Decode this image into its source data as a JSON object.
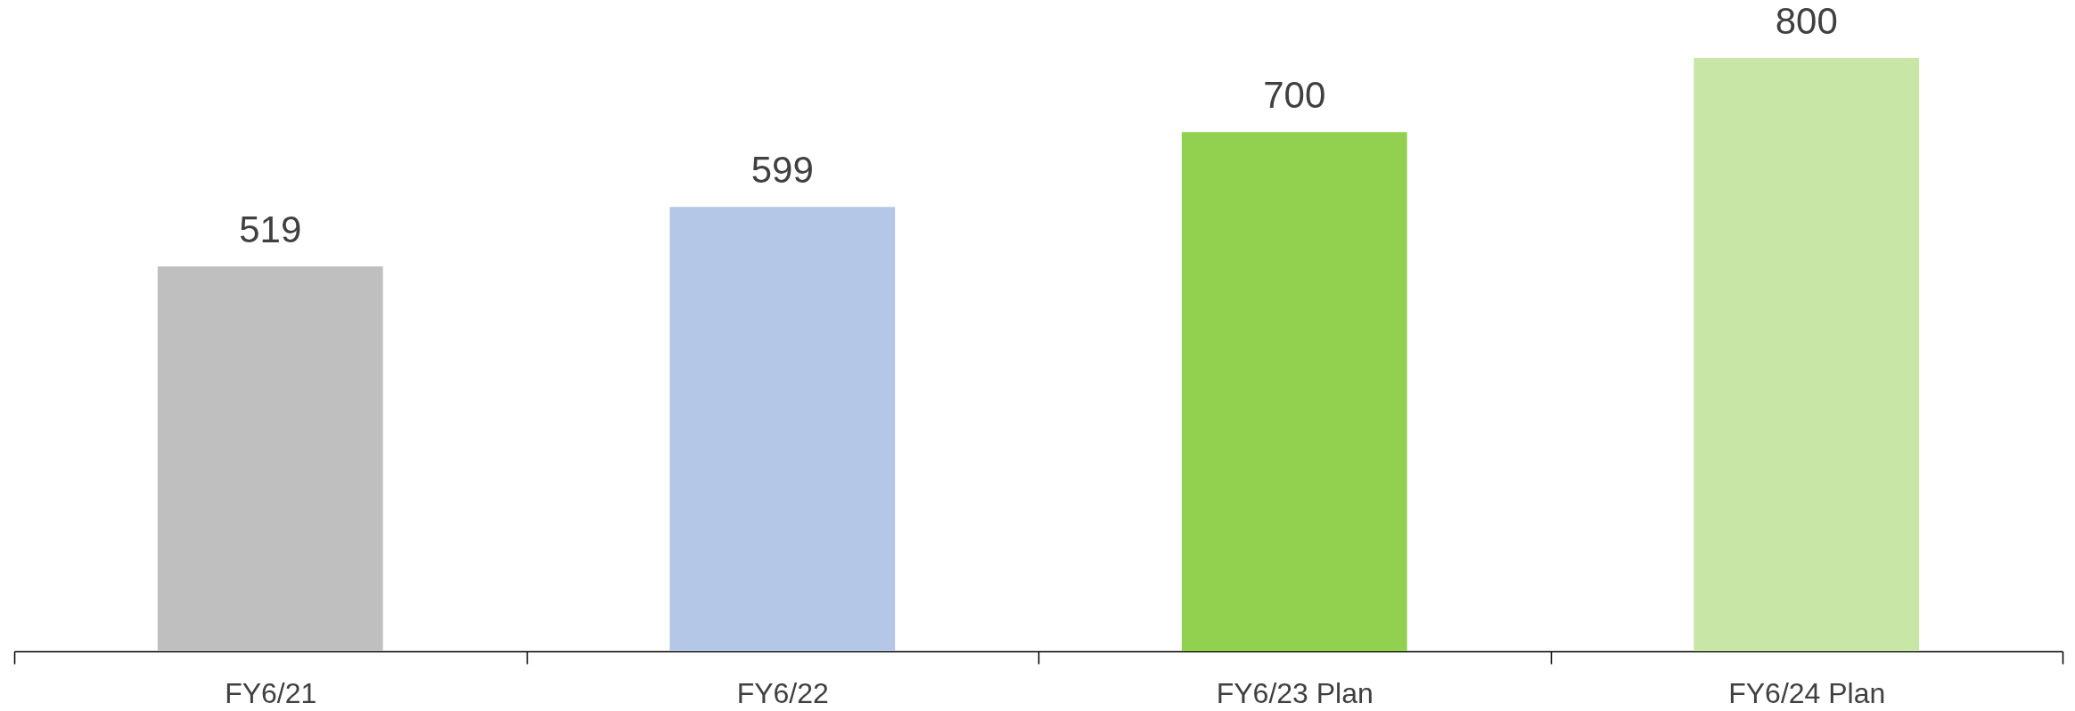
{
  "chart_data": {
    "type": "bar",
    "categories": [
      "FY6/21",
      "FY6/22",
      "FY6/23 Plan",
      "FY6/24 Plan"
    ],
    "values": [
      519,
      599,
      700,
      800
    ],
    "colors": [
      "#bfbfbf",
      "#b4c7e7",
      "#92d050",
      "#c8e7a7"
    ],
    "data_labels": true,
    "tick_labels": "x"
  }
}
